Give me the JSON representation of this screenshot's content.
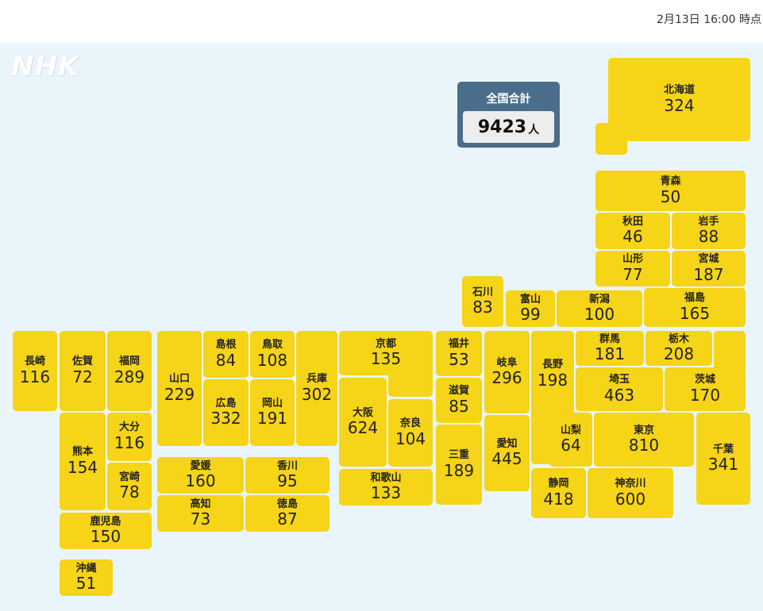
{
  "timestamp": "2月13日 16:00 時点",
  "logo": "NHK",
  "total": {
    "label": "全国合計",
    "value": "9423",
    "unit": "人"
  },
  "prefectures": {
    "hokkaido": {
      "name": "北海道",
      "value": "324"
    },
    "aomori": {
      "name": "青森",
      "value": "50"
    },
    "akita": {
      "name": "秋田",
      "value": "46"
    },
    "iwate": {
      "name": "岩手",
      "value": "88"
    },
    "yamagata": {
      "name": "山形",
      "value": "77"
    },
    "miyagi": {
      "name": "宮城",
      "value": "187"
    },
    "ishikawa": {
      "name": "石川",
      "value": "83"
    },
    "toyama": {
      "name": "富山",
      "value": "99"
    },
    "niigata": {
      "name": "新潟",
      "value": "100"
    },
    "fukushima": {
      "name": "福島",
      "value": "165"
    },
    "nagasaki": {
      "name": "長崎",
      "value": "116"
    },
    "saga": {
      "name": "佐賀",
      "value": "72"
    },
    "fukuoka": {
      "name": "福岡",
      "value": "289"
    },
    "yamaguchi": {
      "name": "山口",
      "value": "229"
    },
    "shimane": {
      "name": "島根",
      "value": "84"
    },
    "tottori": {
      "name": "鳥取",
      "value": "108"
    },
    "hyogo": {
      "name": "兵庫",
      "value": "302"
    },
    "kyoto": {
      "name": "京都",
      "value": "135"
    },
    "fukui": {
      "name": "福井",
      "value": "53"
    },
    "gifu": {
      "name": "岐阜",
      "value": "296"
    },
    "nagano": {
      "name": "長野",
      "value": "198"
    },
    "gunma": {
      "name": "群馬",
      "value": "181"
    },
    "tochigi": {
      "name": "栃木",
      "value": "208"
    },
    "hiroshima": {
      "name": "広島",
      "value": "332"
    },
    "okayama": {
      "name": "岡山",
      "value": "191"
    },
    "osaka": {
      "name": "大阪",
      "value": "624"
    },
    "nara": {
      "name": "奈良",
      "value": "104"
    },
    "shiga": {
      "name": "滋賀",
      "value": "85"
    },
    "saitama": {
      "name": "埼玉",
      "value": "463"
    },
    "ibaraki": {
      "name": "茨城",
      "value": "170"
    },
    "kumamoto": {
      "name": "熊本",
      "value": "154"
    },
    "oita": {
      "name": "大分",
      "value": "116"
    },
    "miyazaki": {
      "name": "宮崎",
      "value": "78"
    },
    "mie": {
      "name": "三重",
      "value": "189"
    },
    "aichi": {
      "name": "愛知",
      "value": "445"
    },
    "yamanashi": {
      "name": "山梨",
      "value": "64"
    },
    "tokyo": {
      "name": "東京",
      "value": "810"
    },
    "chiba": {
      "name": "千葉",
      "value": "341"
    },
    "ehime": {
      "name": "愛媛",
      "value": "160"
    },
    "kagawa": {
      "name": "香川",
      "value": "95"
    },
    "kochi": {
      "name": "高知",
      "value": "73"
    },
    "tokushima": {
      "name": "徳島",
      "value": "87"
    },
    "wakayama": {
      "name": "和歌山",
      "value": "133"
    },
    "shizuoka": {
      "name": "静岡",
      "value": "418"
    },
    "kanagawa": {
      "name": "神奈川",
      "value": "600"
    },
    "kagoshima": {
      "name": "鹿児島",
      "value": "150"
    },
    "okinawa": {
      "name": "沖縄",
      "value": "51"
    }
  }
}
